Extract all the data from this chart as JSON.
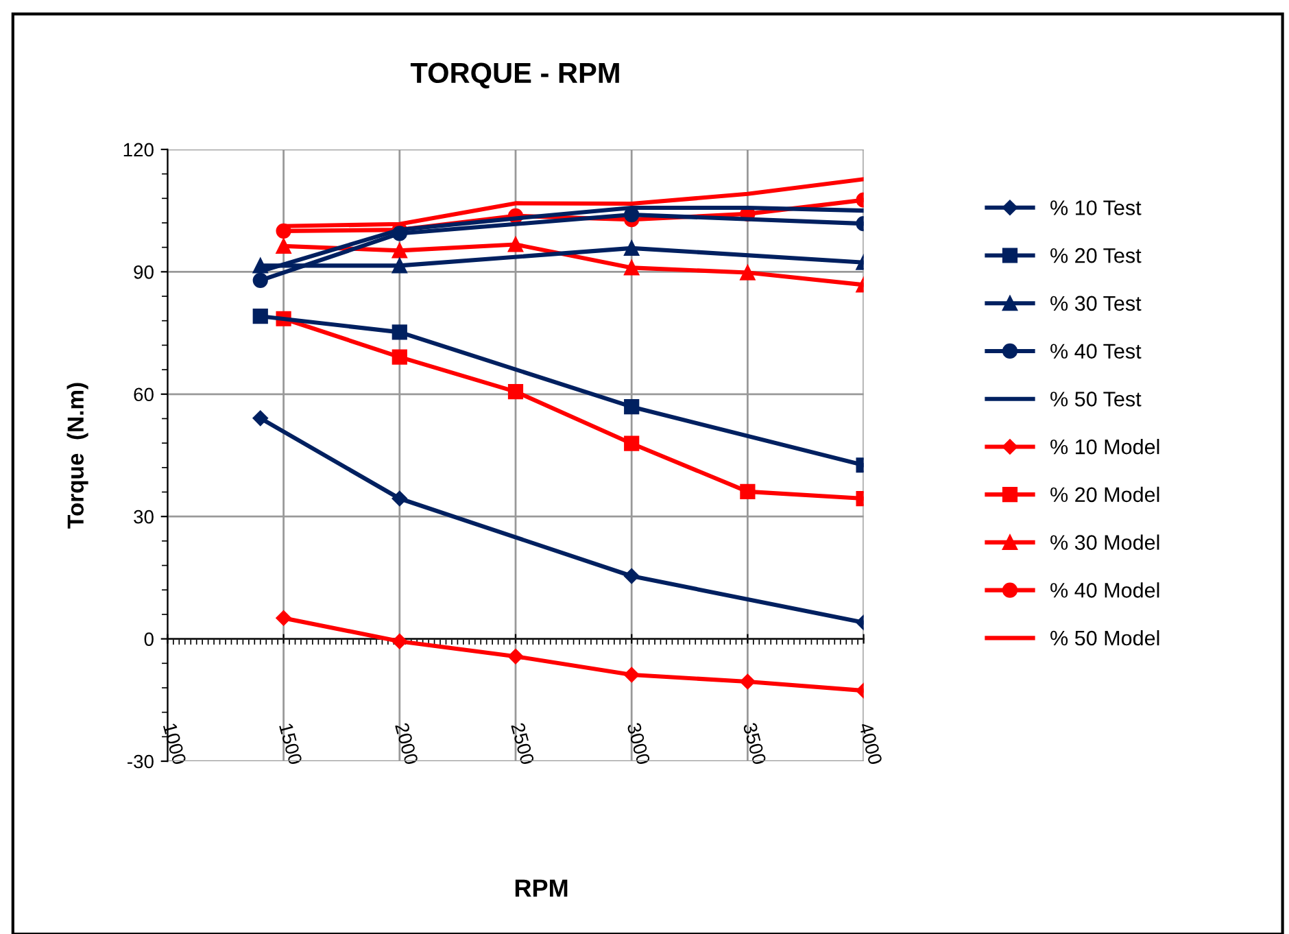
{
  "chart_data": {
    "type": "line",
    "title": "TORQUE - RPM",
    "xlabel": "RPM",
    "ylabel": "Torque  (N.m)",
    "xlim": [
      1000,
      4000
    ],
    "xticks": [
      1000,
      1500,
      2000,
      2500,
      3000,
      3500,
      4000
    ],
    "ylim": [
      -30,
      120
    ],
    "yticks": [
      -30,
      0,
      30,
      60,
      90,
      120
    ],
    "grid": true,
    "legend": "right",
    "series": [
      {
        "name": "% 10 Test",
        "color": "#002060",
        "marker": "diamond",
        "x": [
          1400,
          2000,
          3000,
          4000
        ],
        "values": [
          54.1,
          34.4,
          15.4,
          4.0
        ]
      },
      {
        "name": "% 20 Test",
        "color": "#002060",
        "marker": "square",
        "x": [
          1400,
          2000,
          3000,
          4000
        ],
        "values": [
          79.1,
          75.2,
          56.9,
          42.6
        ]
      },
      {
        "name": "% 30 Test",
        "color": "#002060",
        "marker": "triangle",
        "x": [
          1400,
          2000,
          3000,
          4000
        ],
        "values": [
          91.5,
          91.5,
          95.8,
          92.3
        ]
      },
      {
        "name": "% 40 Test",
        "color": "#002060",
        "marker": "circle",
        "x": [
          1400,
          2000,
          3000,
          4000
        ],
        "values": [
          87.9,
          99.4,
          104.0,
          101.8
        ]
      },
      {
        "name": "% 50 Test",
        "color": "#002060",
        "marker": "none",
        "x": [
          1400,
          2000,
          2500,
          3000,
          3500,
          4000
        ],
        "values": [
          90.1,
          100.3,
          103.1,
          105.7,
          105.7,
          105.0
        ]
      },
      {
        "name": "% 10 Model",
        "color": "#ff0000",
        "marker": "diamond",
        "x": [
          1500,
          2000,
          2500,
          3000,
          3500,
          4000
        ],
        "values": [
          5.1,
          -0.6,
          -4.3,
          -8.8,
          -10.5,
          -12.7
        ]
      },
      {
        "name": "% 20 Model",
        "color": "#ff0000",
        "marker": "square",
        "x": [
          1500,
          2000,
          2500,
          3000,
          3500,
          4000
        ],
        "values": [
          78.5,
          69.1,
          60.6,
          47.9,
          36.1,
          34.4
        ]
      },
      {
        "name": "% 30 Model",
        "color": "#ff0000",
        "marker": "triangle",
        "x": [
          1500,
          2000,
          2500,
          3000,
          3500,
          4000
        ],
        "values": [
          96.3,
          95.2,
          96.7,
          91.0,
          89.8,
          86.8
        ]
      },
      {
        "name": "% 40 Model",
        "color": "#ff0000",
        "marker": "circle",
        "x": [
          1500,
          2000,
          2500,
          3000,
          3500,
          4000
        ],
        "values": [
          100.0,
          100.3,
          103.7,
          102.8,
          104.2,
          107.6
        ]
      },
      {
        "name": "% 50 Model",
        "color": "#ff0000",
        "marker": "none",
        "x": [
          1500,
          2000,
          2500,
          3000,
          3500,
          4000
        ],
        "values": [
          101.2,
          101.7,
          106.8,
          106.7,
          109.1,
          112.7
        ]
      }
    ]
  }
}
